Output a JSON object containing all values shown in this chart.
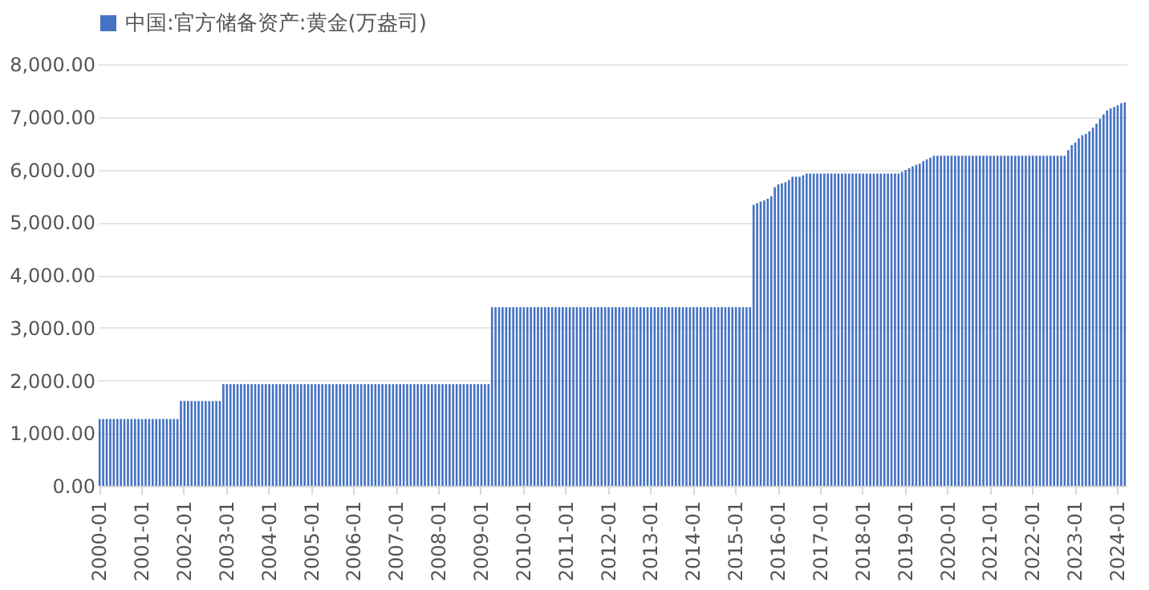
{
  "chart_data": {
    "type": "bar",
    "legend": "top",
    "grid": "y",
    "categories": [
      "2000-01",
      null,
      null,
      null,
      null,
      null,
      null,
      null,
      null,
      null,
      null,
      null,
      "2001-01",
      null,
      null,
      null,
      null,
      null,
      null,
      null,
      null,
      null,
      null,
      null,
      "2002-01",
      null,
      null,
      null,
      null,
      null,
      null,
      null,
      null,
      null,
      null,
      null,
      "2003-01",
      null,
      null,
      null,
      null,
      null,
      null,
      null,
      null,
      null,
      null,
      null,
      "2004-01",
      null,
      null,
      null,
      null,
      null,
      null,
      null,
      null,
      null,
      null,
      null,
      "2005-01",
      null,
      null,
      null,
      null,
      null,
      null,
      null,
      null,
      null,
      null,
      null,
      "2006-01",
      null,
      null,
      null,
      null,
      null,
      null,
      null,
      null,
      null,
      null,
      null,
      "2007-01",
      null,
      null,
      null,
      null,
      null,
      null,
      null,
      null,
      null,
      null,
      null,
      "2008-01",
      null,
      null,
      null,
      null,
      null,
      null,
      null,
      null,
      null,
      null,
      null,
      "2009-01",
      null,
      null,
      null,
      null,
      null,
      null,
      null,
      null,
      null,
      null,
      null,
      "2010-01",
      null,
      null,
      null,
      null,
      null,
      null,
      null,
      null,
      null,
      null,
      null,
      "2011-01",
      null,
      null,
      null,
      null,
      null,
      null,
      null,
      null,
      null,
      null,
      null,
      "2012-01",
      null,
      null,
      null,
      null,
      null,
      null,
      null,
      null,
      null,
      null,
      null,
      "2013-01",
      null,
      null,
      null,
      null,
      null,
      null,
      null,
      null,
      null,
      null,
      null,
      "2014-01",
      null,
      null,
      null,
      null,
      null,
      null,
      null,
      null,
      null,
      null,
      null,
      "2015-01",
      null,
      null,
      null,
      null,
      null,
      null,
      null,
      null,
      null,
      null,
      null,
      "2016-01",
      null,
      null,
      null,
      null,
      null,
      null,
      null,
      null,
      null,
      null,
      null,
      "2017-01",
      null,
      null,
      null,
      null,
      null,
      null,
      null,
      null,
      null,
      null,
      null,
      "2018-01",
      null,
      null,
      null,
      null,
      null,
      null,
      null,
      null,
      null,
      null,
      null,
      "2019-01",
      null,
      null,
      null,
      null,
      null,
      null,
      null,
      null,
      null,
      null,
      null,
      "2020-01",
      null,
      null,
      null,
      null,
      null,
      null,
      null,
      null,
      null,
      null,
      null,
      "2021-01",
      null,
      null,
      null,
      null,
      null,
      null,
      null,
      null,
      null,
      null,
      null,
      "2022-01",
      null,
      null,
      null,
      null,
      null,
      null,
      null,
      null,
      null,
      null,
      null,
      "2023-01",
      null,
      null,
      null,
      null,
      null,
      null,
      null,
      null,
      null,
      null,
      null,
      "2024-01",
      null,
      null
    ],
    "ylim": [
      0,
      8000
    ],
    "yticks": [
      {
        "value": 0,
        "label": "0.00"
      },
      {
        "value": 1000,
        "label": "1,000.00"
      },
      {
        "value": 2000,
        "label": "2,000.00"
      },
      {
        "value": 3000,
        "label": "3,000.00"
      },
      {
        "value": 4000,
        "label": "4,000.00"
      },
      {
        "value": 5000,
        "label": "5,000.00"
      },
      {
        "value": 6000,
        "label": "6,000.00"
      },
      {
        "value": 7000,
        "label": "7,000.00"
      },
      {
        "value": 8000,
        "label": "8,000.00"
      }
    ],
    "series": [
      {
        "name": "中国:官方储备资产:黄金(万盎司)",
        "color": "#4472c4",
        "values": [
          1267,
          1267,
          1267,
          1267,
          1267,
          1267,
          1267,
          1267,
          1267,
          1267,
          1267,
          1267,
          1267,
          1267,
          1267,
          1267,
          1267,
          1267,
          1267,
          1267,
          1267,
          1267,
          1267,
          1608,
          1608,
          1608,
          1608,
          1608,
          1608,
          1608,
          1608,
          1608,
          1608,
          1608,
          1608,
          1929,
          1929,
          1929,
          1929,
          1929,
          1929,
          1929,
          1929,
          1929,
          1929,
          1929,
          1929,
          1929,
          1929,
          1929,
          1929,
          1929,
          1929,
          1929,
          1929,
          1929,
          1929,
          1929,
          1929,
          1929,
          1929,
          1929,
          1929,
          1929,
          1929,
          1929,
          1929,
          1929,
          1929,
          1929,
          1929,
          1929,
          1929,
          1929,
          1929,
          1929,
          1929,
          1929,
          1929,
          1929,
          1929,
          1929,
          1929,
          1929,
          1929,
          1929,
          1929,
          1929,
          1929,
          1929,
          1929,
          1929,
          1929,
          1929,
          1929,
          1929,
          1929,
          1929,
          1929,
          1929,
          1929,
          1929,
          1929,
          1929,
          1929,
          1929,
          1929,
          1929,
          1929,
          1929,
          1929,
          3389,
          3389,
          3389,
          3389,
          3389,
          3389,
          3389,
          3389,
          3389,
          3389,
          3389,
          3389,
          3389,
          3389,
          3389,
          3389,
          3389,
          3389,
          3389,
          3389,
          3389,
          3389,
          3389,
          3389,
          3389,
          3389,
          3389,
          3389,
          3389,
          3389,
          3389,
          3389,
          3389,
          3389,
          3389,
          3389,
          3389,
          3389,
          3389,
          3389,
          3389,
          3389,
          3389,
          3389,
          3389,
          3389,
          3389,
          3389,
          3389,
          3389,
          3389,
          3389,
          3389,
          3389,
          3389,
          3389,
          3389,
          3389,
          3389,
          3389,
          3389,
          3389,
          3389,
          3389,
          3389,
          3389,
          3389,
          3389,
          3389,
          3389,
          3389,
          3389,
          3389,
          3389,
          5331,
          5362,
          5393,
          5415,
          5445,
          5493,
          5666,
          5719,
          5738,
          5762,
          5804,
          5862,
          5862,
          5862,
          5888,
          5924,
          5924,
          5924,
          5924,
          5924,
          5924,
          5924,
          5924,
          5924,
          5924,
          5924,
          5924,
          5924,
          5924,
          5924,
          5924,
          5924,
          5924,
          5924,
          5924,
          5924,
          5924,
          5924,
          5924,
          5924,
          5924,
          5924,
          5956,
          5994,
          6026,
          6062,
          6092,
          6110,
          6161,
          6194,
          6226,
          6264,
          6264,
          6264,
          6264,
          6264,
          6264,
          6264,
          6264,
          6264,
          6264,
          6264,
          6264,
          6264,
          6264,
          6264,
          6264,
          6264,
          6264,
          6264,
          6264,
          6264,
          6264,
          6264,
          6264,
          6264,
          6264,
          6264,
          6264,
          6264,
          6264,
          6264,
          6264,
          6264,
          6264,
          6264,
          6264,
          6264,
          6264,
          6367,
          6464,
          6512,
          6592,
          6650,
          6676,
          6727,
          6795,
          6869,
          6962,
          7046,
          7120,
          7158,
          7187,
          7219,
          7258,
          7274
        ]
      }
    ]
  }
}
